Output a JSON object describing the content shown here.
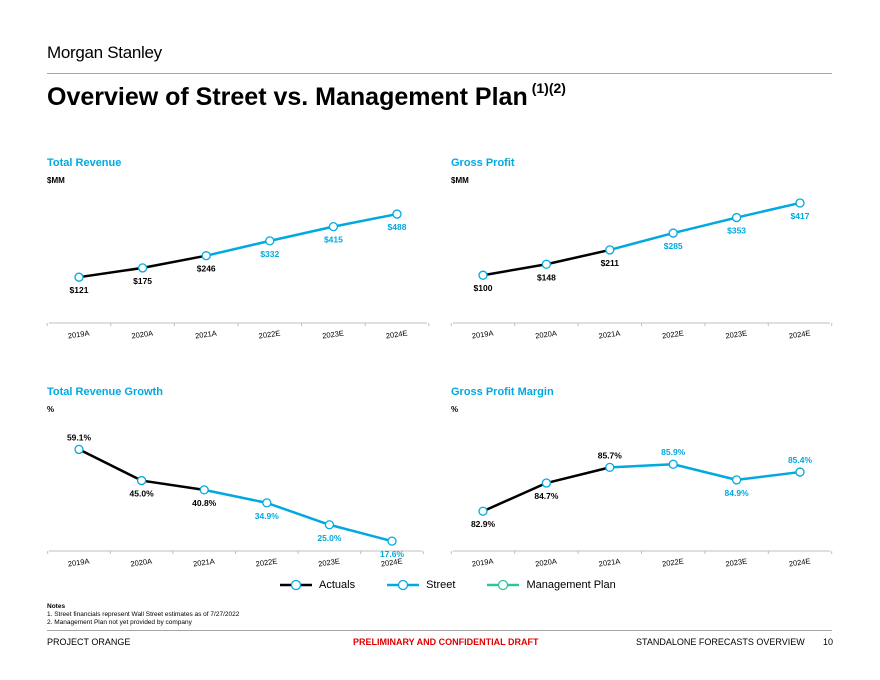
{
  "header": {
    "brand": "Morgan Stanley",
    "title": "Overview of Street vs. Management Plan",
    "title_superscript": "(1)(2)"
  },
  "colors": {
    "actuals": "#000000",
    "street": "#00a9e0",
    "management": "#2ec4a0"
  },
  "chart_data": [
    {
      "type": "line",
      "title": "Total Revenue",
      "ylabel": "$MM",
      "categories": [
        "2019A",
        "2020A",
        "2021A",
        "2022E",
        "2023E",
        "2024E"
      ],
      "values": [
        121,
        175,
        246,
        332,
        415,
        488
      ],
      "labels": [
        "$121",
        "$175",
        "$246",
        "$332",
        "$415",
        "$488"
      ],
      "actual_count": 3,
      "ylim": [
        0,
        500
      ]
    },
    {
      "type": "line",
      "title": "Gross Profit",
      "ylabel": "$MM",
      "categories": [
        "2019A",
        "2020A",
        "2021A",
        "2022E",
        "2023E",
        "2024E"
      ],
      "values": [
        100,
        148,
        211,
        285,
        353,
        417
      ],
      "labels": [
        "$100",
        "$148",
        "$211",
        "$285",
        "$353",
        "$417"
      ],
      "actual_count": 3,
      "ylim": [
        0,
        430
      ]
    },
    {
      "type": "line",
      "title": "Total Revenue Growth",
      "ylabel": "%",
      "categories": [
        "2019A",
        "2020A",
        "2021A",
        "2022E",
        "2023E",
        "2024E"
      ],
      "values": [
        59.1,
        45.0,
        40.8,
        34.9,
        25.0,
        17.6
      ],
      "labels": [
        "59.1%",
        "45.0%",
        "40.8%",
        "34.9%",
        "25.0%",
        "17.6%"
      ],
      "actual_count": 3,
      "ylim": [
        0,
        62
      ]
    },
    {
      "type": "line",
      "title": "Gross Profit Margin",
      "ylabel": "%",
      "categories": [
        "2019A",
        "2020A",
        "2021A",
        "2022E",
        "2023E",
        "2024E"
      ],
      "values": [
        82.9,
        84.7,
        85.7,
        85.9,
        84.9,
        85.4
      ],
      "labels": [
        "82.9%",
        "84.7%",
        "85.7%",
        "85.9%",
        "84.9%",
        "85.4%"
      ],
      "actual_count": 3,
      "ylim": [
        81,
        87
      ]
    }
  ],
  "legend": {
    "actuals": "Actuals",
    "street": "Street",
    "management": "Management Plan"
  },
  "notes": {
    "heading": "Notes",
    "items": [
      "1.  Street financials represent Wall Street estimates as of 7/27/2022",
      "2.  Management Plan not yet provided by company"
    ]
  },
  "footer": {
    "project": "PROJECT ORANGE",
    "confidential": "PRELIMINARY AND CONFIDENTIAL DRAFT",
    "section": "STANDALONE FORECASTS OVERVIEW",
    "page": "10"
  }
}
